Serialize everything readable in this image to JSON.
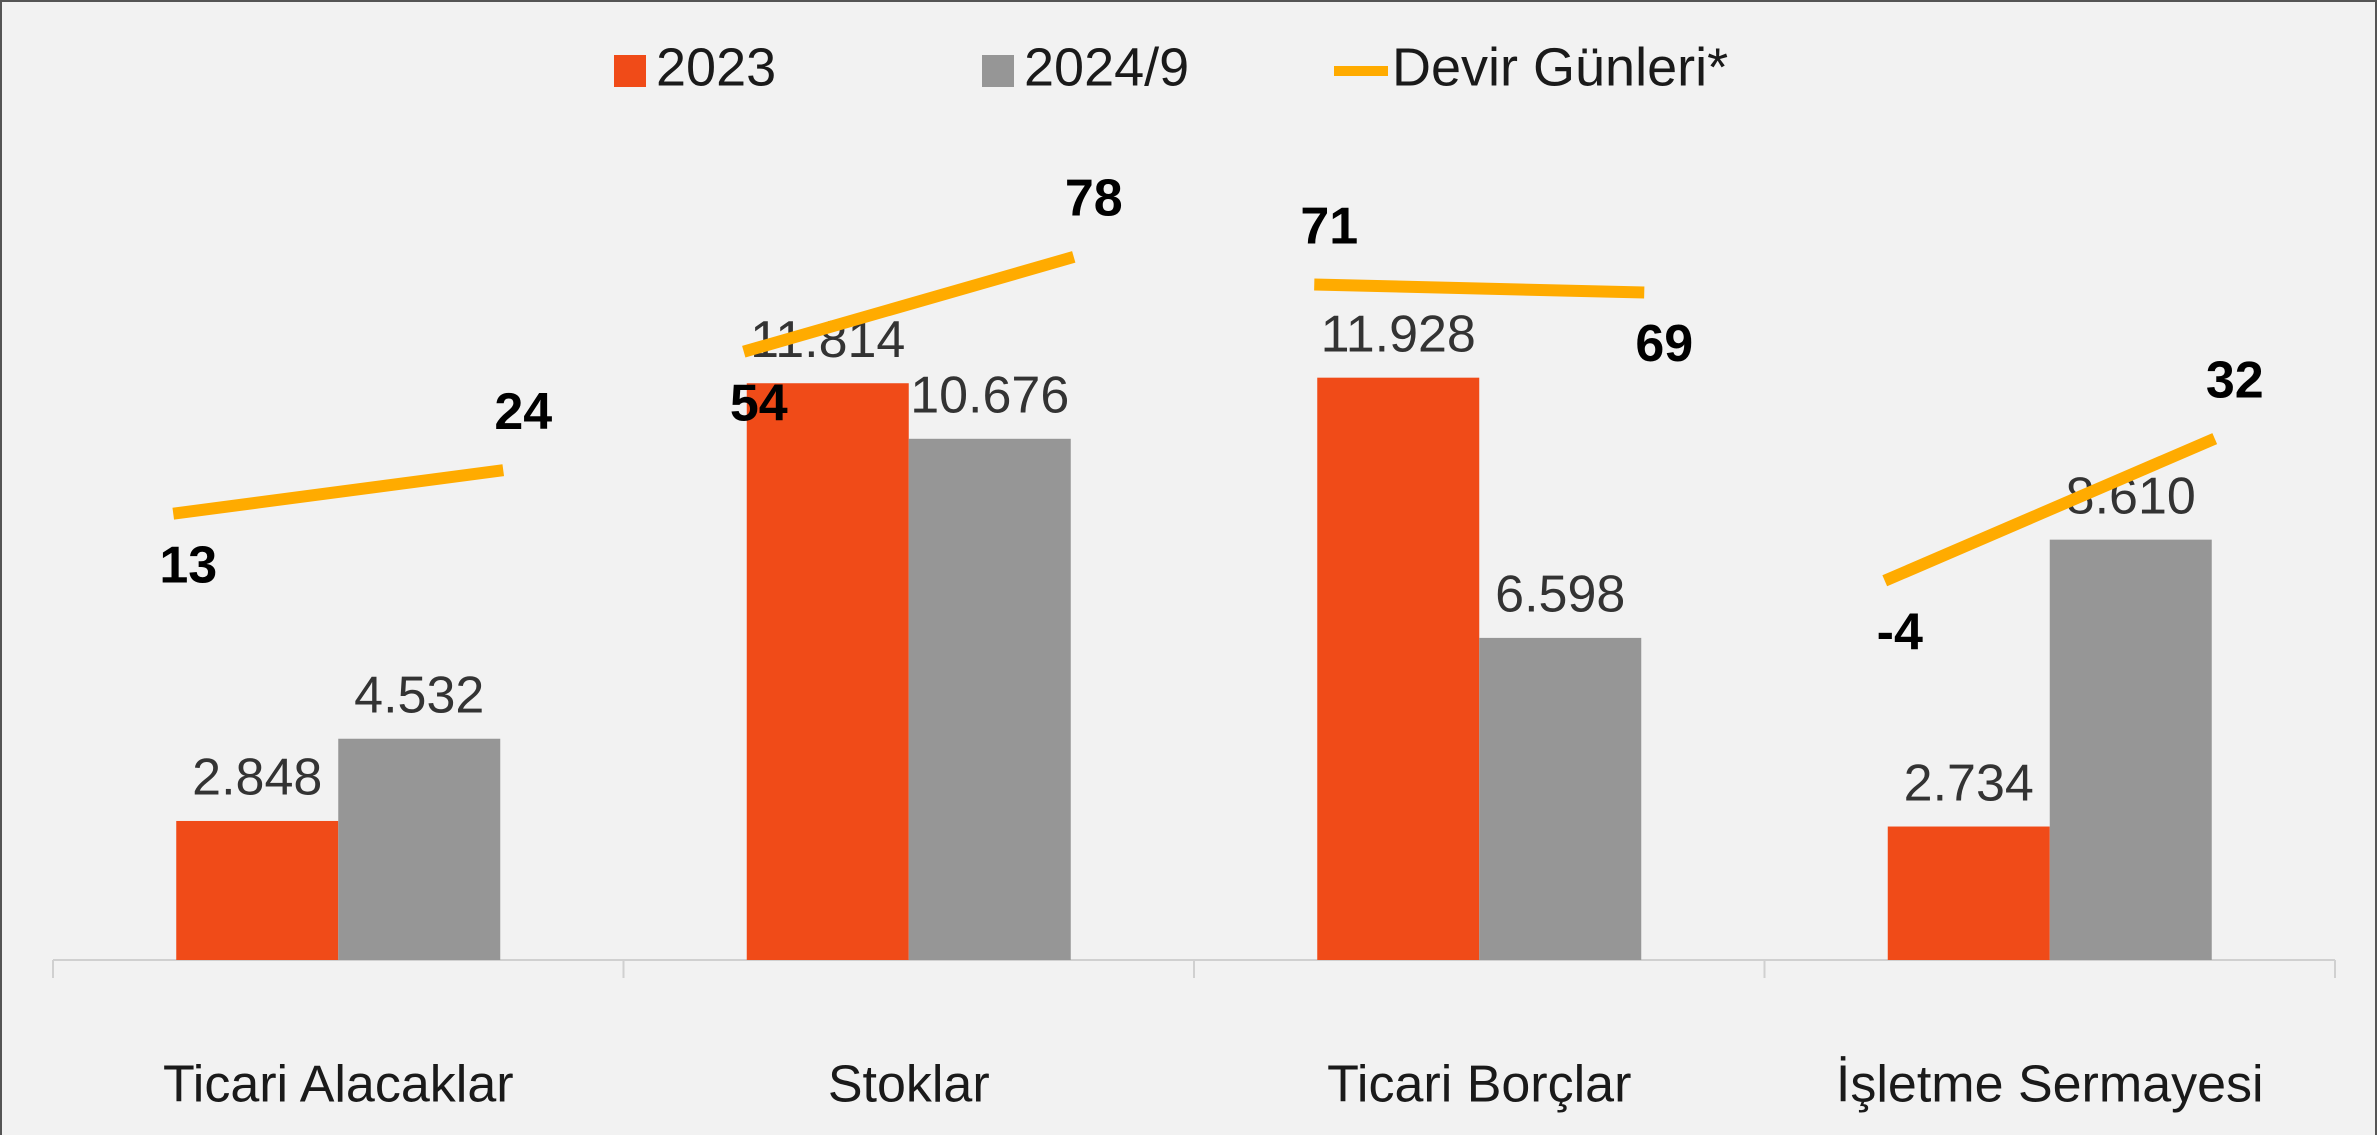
{
  "chart_data": {
    "type": "bar",
    "categories": [
      "Ticari Alacaklar",
      "Stoklar",
      "Ticari Borçlar",
      "İşletme Sermayesi"
    ],
    "series": [
      {
        "name": "2023",
        "color": "#f04b18",
        "values": [
          2848,
          11814,
          11928,
          2734
        ],
        "value_labels": [
          "2.848",
          "11.814",
          "11.928",
          "2.734"
        ]
      },
      {
        "name": "2024/9",
        "color": "#969696",
        "values": [
          4532,
          10676,
          6598,
          8610
        ],
        "value_labels": [
          "4.532",
          "10.676",
          "6.598",
          "8.610"
        ]
      },
      {
        "name": "Devir Günleri*",
        "color": "#ffab00",
        "type": "line",
        "axis": "y2",
        "values": [
          [
            13,
            24
          ],
          [
            54,
            78
          ],
          [
            71,
            69
          ],
          [
            -4,
            32
          ]
        ]
      }
    ],
    "ylim": [
      0,
      17800
    ],
    "y2lim": [
      -100,
      120
    ]
  }
}
